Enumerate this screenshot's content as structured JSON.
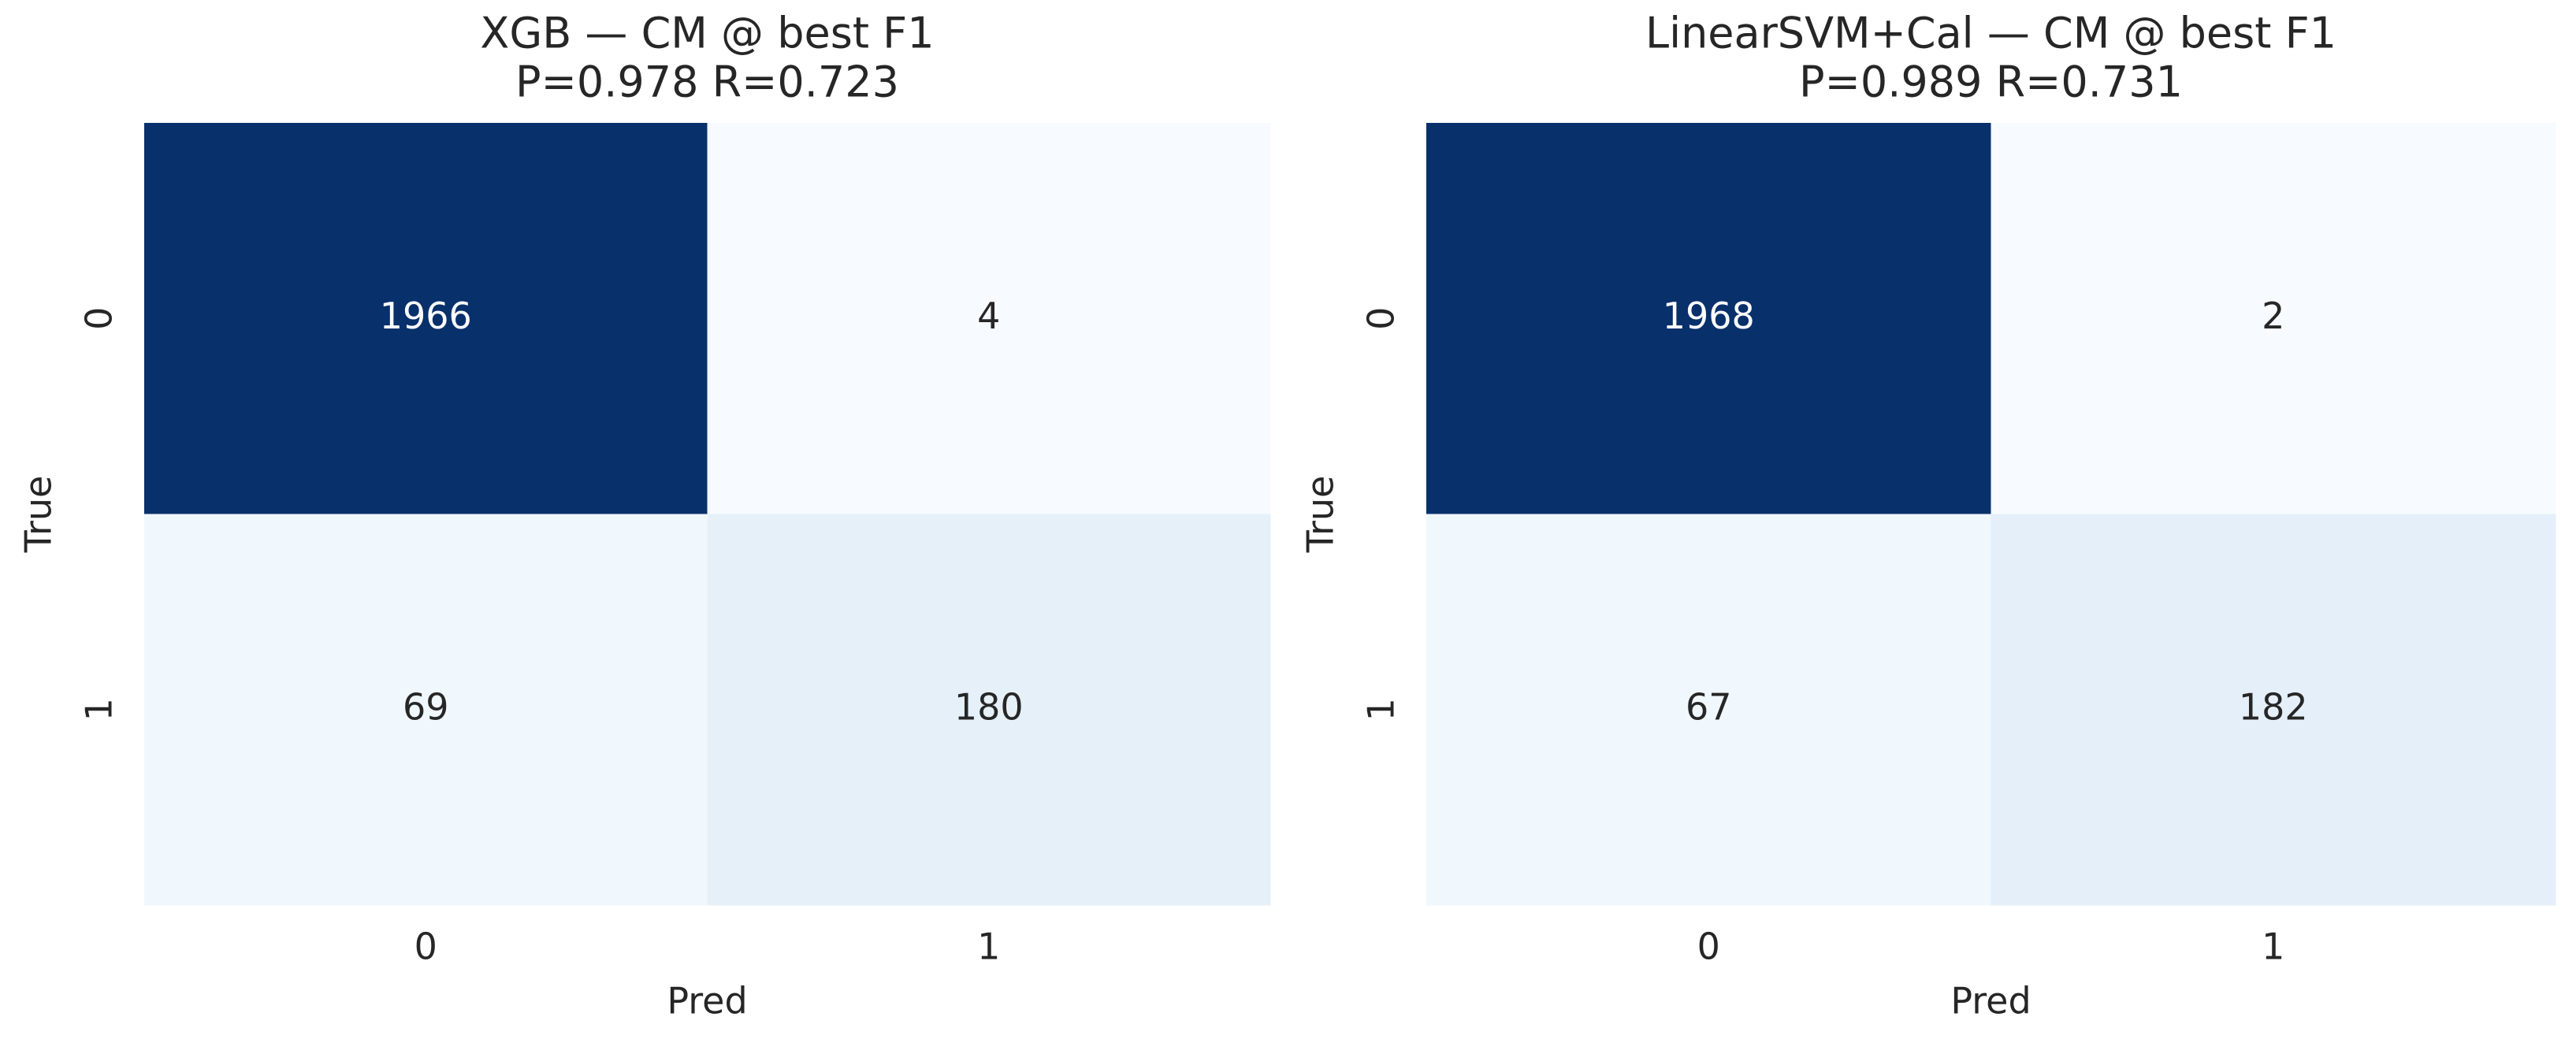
{
  "chart_data": [
    {
      "type": "heatmap",
      "title": "XGB — CM @ best F1",
      "subtitle": "P=0.978 R=0.723",
      "x_label": "Pred",
      "y_label": "True",
      "x_categories": [
        "0",
        "1"
      ],
      "y_categories": [
        "0",
        "1"
      ],
      "values": [
        [
          1966,
          4
        ],
        [
          69,
          180
        ]
      ],
      "colormap": "Blues"
    },
    {
      "type": "heatmap",
      "title": "LinearSVM+Cal — CM @ best F1",
      "subtitle": "P=0.989 R=0.731",
      "x_label": "Pred",
      "y_label": "True",
      "x_categories": [
        "0",
        "1"
      ],
      "y_categories": [
        "0",
        "1"
      ],
      "values": [
        [
          1968,
          2
        ],
        [
          67,
          182
        ]
      ],
      "colormap": "Blues"
    }
  ]
}
